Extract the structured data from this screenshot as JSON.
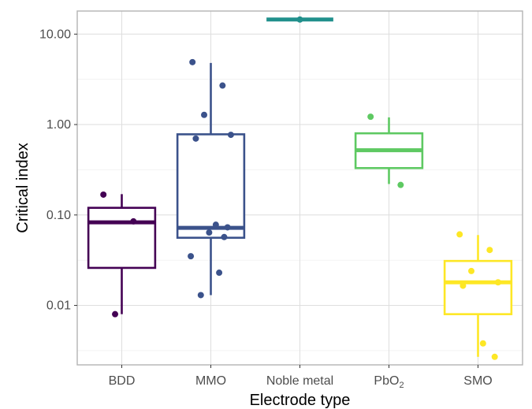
{
  "chart_data": {
    "type": "box",
    "xlabel": "Electrode type",
    "ylabel": "Critical index",
    "y_scale": "log10",
    "ylim": [
      0.0022,
      18
    ],
    "y_ticks": [
      {
        "value": 0.01,
        "label": "0.01"
      },
      {
        "value": 0.1,
        "label": "0.10"
      },
      {
        "value": 1,
        "label": "1.00"
      },
      {
        "value": 10,
        "label": "10.00"
      }
    ],
    "grid": true,
    "legend": "none",
    "categories": [
      {
        "label": "BDD",
        "sub": "",
        "color": "#440154",
        "box": {
          "whisker_low": 0.008,
          "q1": 0.026,
          "median": 0.083,
          "q3": 0.12,
          "whisker_high": 0.17
        },
        "points": [
          0.168,
          0.085,
          0.008
        ]
      },
      {
        "label": "MMO",
        "sub": "",
        "color": "#3b528b",
        "box": {
          "whisker_low": 0.013,
          "q1": 0.056,
          "median": 0.072,
          "q3": 0.78,
          "whisker_high": 4.8
        },
        "points": [
          4.9,
          2.7,
          1.28,
          0.77,
          0.7,
          0.078,
          0.073,
          0.064,
          0.057,
          0.035,
          0.023,
          0.013
        ]
      },
      {
        "label": "Noble metal",
        "sub": "",
        "color": "#21908c",
        "box": {
          "whisker_low": 14.5,
          "q1": 14.5,
          "median": 14.5,
          "q3": 14.5,
          "whisker_high": 14.5
        },
        "points": [
          14.5
        ]
      },
      {
        "label": "PbO",
        "sub": "2",
        "color": "#5ec962",
        "box": {
          "whisker_low": 0.22,
          "q1": 0.33,
          "median": 0.52,
          "q3": 0.8,
          "whisker_high": 1.2
        },
        "points": [
          1.22,
          0.215
        ]
      },
      {
        "label": "SMO",
        "sub": "",
        "color": "#fde725",
        "box": {
          "whisker_low": 0.0027,
          "q1": 0.008,
          "median": 0.018,
          "q3": 0.031,
          "whisker_high": 0.06
        },
        "points": [
          0.061,
          0.041,
          0.024,
          0.018,
          0.0165,
          0.0038,
          0.0027
        ]
      }
    ]
  }
}
